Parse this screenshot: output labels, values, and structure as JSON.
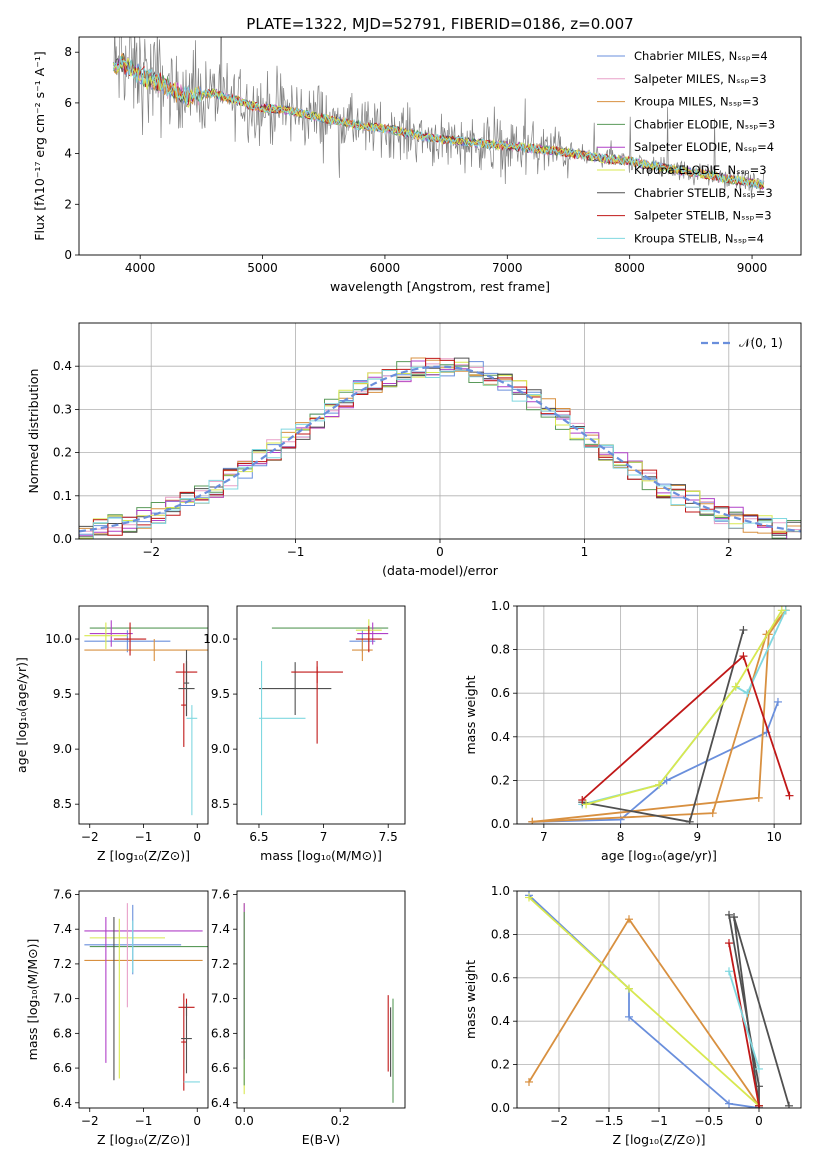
{
  "figure_title": "PLATE=1322, MJD=52791, FIBERID=0186, z=0.007",
  "colors": {
    "data": "#808080",
    "series": [
      "#6a8fdc",
      "#e8a0c8",
      "#d89040",
      "#5a9a5a",
      "#b040c8",
      "#d8e850",
      "#505050",
      "#c01818",
      "#80d8e0"
    ],
    "gaussian": "#6a8fdc"
  },
  "chart_data": [
    {
      "id": "spectrum",
      "type": "line",
      "xlabel": "wavelength [Angstrom, rest frame]",
      "ylabel": "Flux [fλ10⁻¹⁷ erg cm⁻² s⁻¹ A⁻¹]",
      "xlim": [
        3500,
        9400
      ],
      "ylim": [
        0,
        8.6
      ],
      "xticks": [
        4000,
        5000,
        6000,
        7000,
        8000,
        9000
      ],
      "yticks": [
        0,
        2,
        4,
        6,
        8
      ],
      "legend_position": "upper right",
      "legend": [
        "Chabrier MILES, Nₛₛₚ=4",
        "Salpeter MILES, Nₛₛₚ=3",
        "Kroupa MILES, Nₛₛₚ=3",
        "Chabrier ELODIE, Nₛₛₚ=3",
        "Salpeter ELODIE, Nₛₛₚ=4",
        "Kroupa ELODIE, Nₛₛₚ=3",
        "Chabrier STELIB, Nₛₛₚ=3",
        "Salpeter STELIB, Nₛₛₚ=3",
        "Kroupa STELIB, Nₛₛₚ=4"
      ],
      "model_continuum": {
        "x": [
          3780,
          3850,
          3950,
          4000,
          4100,
          4200,
          4300,
          4400,
          4500,
          4600,
          4700,
          4800,
          4900,
          5000,
          5200,
          5400,
          5600,
          5800,
          6000,
          6200,
          6400,
          6600,
          6800,
          7000,
          7200,
          7400,
          7600,
          7800,
          8000,
          8200,
          8400,
          8600,
          8800,
          9000,
          9100
        ],
        "y": [
          7.4,
          7.6,
          7.3,
          7.1,
          6.9,
          6.7,
          6.4,
          6.2,
          6.3,
          6.4,
          6.2,
          6.1,
          5.9,
          5.8,
          5.7,
          5.5,
          5.3,
          5.1,
          5.0,
          4.8,
          4.6,
          4.5,
          4.4,
          4.3,
          4.2,
          4.1,
          3.95,
          3.8,
          3.7,
          3.5,
          3.35,
          3.2,
          3.0,
          2.85,
          2.75
        ]
      }
    },
    {
      "id": "residuals",
      "type": "histogram",
      "xlabel": "(data-model)/error",
      "ylabel": "Normed distribution",
      "xlim": [
        -2.5,
        2.5
      ],
      "ylim": [
        0,
        0.5
      ],
      "xticks": [
        -2,
        -1,
        0,
        1,
        2
      ],
      "yticks": [
        0.0,
        0.1,
        0.2,
        0.3,
        0.4
      ],
      "legend": [
        "𝒩(0, 1)"
      ],
      "legend_position": "upper right",
      "bin_width": 0.1,
      "bins_start": -2.5
    },
    {
      "id": "age_vs_Z",
      "type": "scatter",
      "xlabel": "Z [log₁₀(Z/Z⊙)]",
      "ylabel": "age  [log₁₀(age/yr)]",
      "xlim": [
        -2.2,
        0.2
      ],
      "ylim": [
        8.32,
        10.3
      ],
      "xticks": [
        -2,
        -1,
        0
      ],
      "yticks": [
        8.5,
        9.0,
        9.5,
        10.0
      ]
    },
    {
      "id": "age_vs_mass",
      "type": "scatter",
      "xlabel": "mass [log₁₀(M/M⊙)]",
      "xlim": [
        6.33,
        7.63
      ],
      "ylim": [
        8.32,
        10.3
      ],
      "xticks": [
        6.5,
        7.0,
        7.5
      ],
      "yticks": [
        8.5,
        9.0,
        9.5,
        10.0
      ]
    },
    {
      "id": "mw_vs_age",
      "type": "line",
      "xlabel": "age  [log₁₀(age/yr)]",
      "ylabel": "mass weight",
      "xlim": [
        6.65,
        10.35
      ],
      "ylim": [
        0,
        1
      ],
      "xticks": [
        7,
        8,
        9,
        10
      ],
      "yticks": [
        0.0,
        0.2,
        0.4,
        0.6,
        0.8,
        1.0
      ],
      "series": [
        {
          "x": [
            6.85,
            8.0,
            8.6,
            9.9,
            10.05
          ],
          "y": [
            0.01,
            0.02,
            0.2,
            0.42,
            0.56
          ]
        },
        {
          "x": [
            6.85,
            9.2,
            9.9,
            10.15
          ],
          "y": [
            0.01,
            0.05,
            0.87,
            0.98
          ]
        },
        {
          "x": [
            6.85,
            9.8,
            9.93,
            10.15
          ],
          "y": [
            0.01,
            0.12,
            0.87,
            0.98
          ]
        },
        {
          "x": [
            7.5,
            8.5,
            9.5,
            9.65,
            10.15
          ],
          "y": [
            0.09,
            0.18,
            0.63,
            0.6,
            0.98
          ]
        },
        {
          "x": [
            7.5,
            8.9,
            9.6
          ],
          "y": [
            0.1,
            0.01,
            0.89
          ]
        },
        {
          "x": [
            7.5,
            9.6,
            10.2
          ],
          "y": [
            0.11,
            0.77,
            0.13
          ]
        },
        {
          "x": [
            7.55,
            8.5,
            9.5,
            10.1
          ],
          "y": [
            0.09,
            0.18,
            0.63,
            0.98
          ]
        }
      ]
    },
    {
      "id": "mass_vs_Z",
      "type": "scatter",
      "xlabel": "Z [log₁₀(Z/Z⊙)]",
      "ylabel": "mass [log₁₀(M/M⊙)]",
      "xlim": [
        -2.2,
        0.2
      ],
      "ylim": [
        6.37,
        7.62
      ],
      "xticks": [
        -2,
        -1,
        0
      ],
      "yticks": [
        6.4,
        6.6,
        6.8,
        7.0,
        7.2,
        7.4,
        7.6
      ]
    },
    {
      "id": "mass_vs_EBV",
      "type": "scatter",
      "xlabel": "E(B-V)",
      "xlim": [
        -0.015,
        0.335
      ],
      "ylim": [
        6.37,
        7.62
      ],
      "xticks": [
        0.0,
        0.2
      ],
      "yticks": [
        6.4,
        6.6,
        6.8,
        7.0,
        7.2,
        7.4,
        7.6
      ]
    },
    {
      "id": "mw_vs_Z",
      "type": "line",
      "xlabel": "Z [log₁₀(Z/Z⊙)]",
      "ylabel": "mass weight",
      "xlim": [
        -2.42,
        0.42
      ],
      "ylim": [
        0,
        1
      ],
      "xticks": [
        -2.0,
        -1.5,
        -1.0,
        -0.5,
        0.0
      ],
      "yticks": [
        0.0,
        0.2,
        0.4,
        0.6,
        0.8,
        1.0
      ],
      "series": [
        {
          "x": [
            -2.3,
            -1.3,
            -1.3,
            -0.3,
            0.0
          ],
          "y": [
            0.98,
            0.55,
            0.42,
            0.02,
            0.0
          ]
        },
        {
          "x": [
            -2.3,
            -1.3,
            0.0
          ],
          "y": [
            0.12,
            0.87,
            0.01
          ]
        },
        {
          "x": [
            -2.3,
            -1.3,
            0.0
          ],
          "y": [
            0.97,
            0.55,
            0.01
          ]
        },
        {
          "x": [
            -0.3,
            0.0,
            0.0
          ],
          "y": [
            0.89,
            0.1,
            0.0
          ]
        },
        {
          "x": [
            -0.25,
            0.0,
            0.0
          ],
          "y": [
            0.88,
            0.01,
            0.0
          ]
        },
        {
          "x": [
            -0.25,
            0.3
          ],
          "y": [
            0.88,
            0.01
          ]
        },
        {
          "x": [
            -0.3,
            0.0
          ],
          "y": [
            0.76,
            0.01
          ]
        },
        {
          "x": [
            -0.3,
            0.0
          ],
          "y": [
            0.63,
            0.18
          ]
        }
      ]
    }
  ]
}
